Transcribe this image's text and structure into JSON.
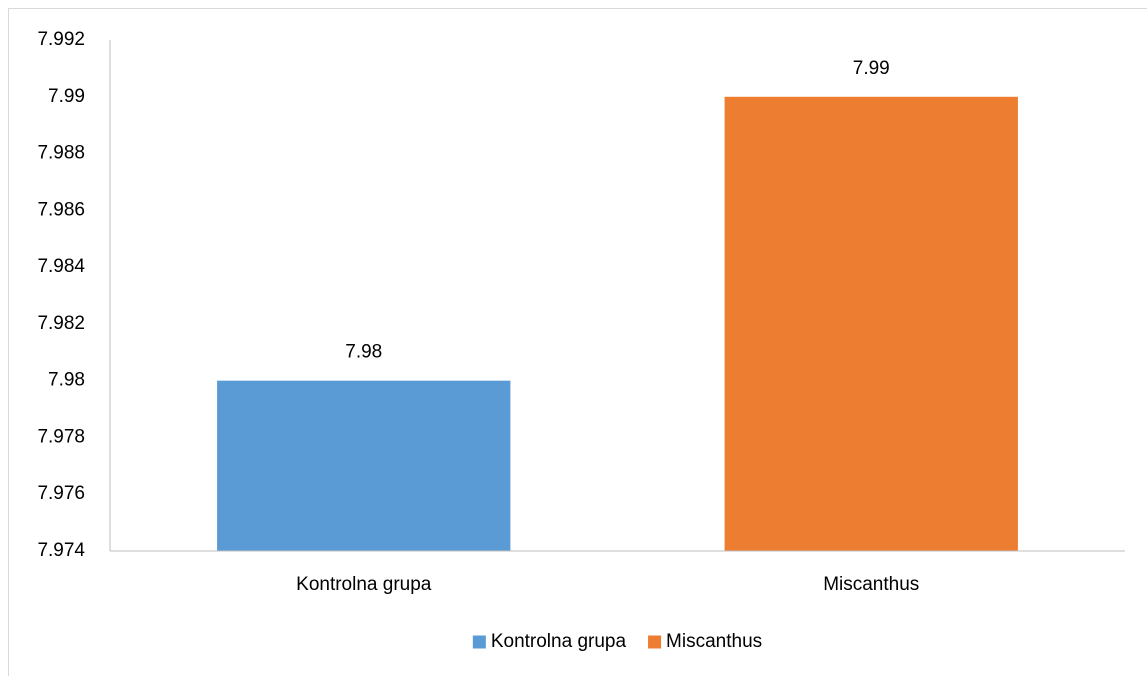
{
  "chart_data": {
    "type": "bar",
    "categories": [
      "Kontrolna grupa",
      "Miscanthus"
    ],
    "values": [
      7.98,
      7.99
    ],
    "colors": [
      "#5b9bd5",
      "#ed7d31"
    ],
    "ylim": [
      7.974,
      7.992
    ],
    "yticks": [
      7.974,
      7.976,
      7.978,
      7.98,
      7.982,
      7.984,
      7.986,
      7.988,
      7.99,
      7.992
    ],
    "grid": false,
    "legend": "bottom"
  }
}
